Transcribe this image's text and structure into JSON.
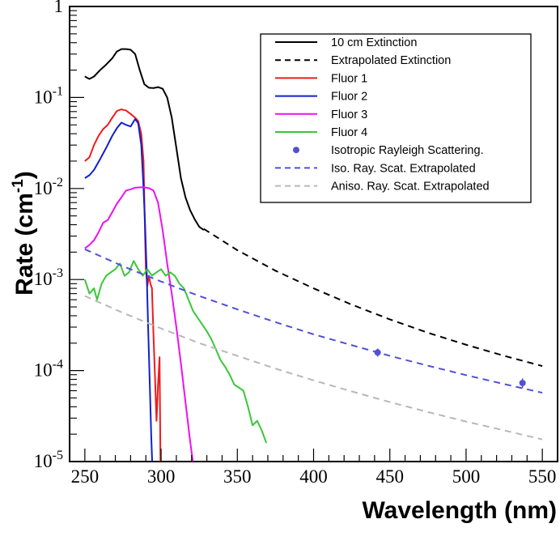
{
  "chart_data": {
    "type": "line",
    "title": "",
    "xlabel": "Wavelength (nm)",
    "ylabel_main": "Rate (cm",
    "ylabel_sup": "-1",
    "ylabel_close": ")",
    "xlim": [
      240,
      560
    ],
    "ylim": [
      1e-05,
      1
    ],
    "yscale": "log",
    "grid": false,
    "legend_position": "top-right",
    "x_ticks": [
      {
        "value": 250,
        "label": "250"
      },
      {
        "value": 300,
        "label": "300"
      },
      {
        "value": 350,
        "label": "350"
      },
      {
        "value": 400,
        "label": "400"
      },
      {
        "value": 450,
        "label": "450"
      },
      {
        "value": 500,
        "label": "500"
      },
      {
        "value": 550,
        "label": "550"
      }
    ],
    "y_ticks": [
      {
        "value": 1,
        "base": "1",
        "exp": ""
      },
      {
        "value": 0.1,
        "base": "10",
        "exp": "-1"
      },
      {
        "value": 0.01,
        "base": "10",
        "exp": "-2"
      },
      {
        "value": 0.001,
        "base": "10",
        "exp": "-3"
      },
      {
        "value": 0.0001,
        "base": "10",
        "exp": "-4"
      },
      {
        "value": 1e-05,
        "base": "10",
        "exp": "-5"
      }
    ],
    "series": [
      {
        "name": "10 cm Extinction",
        "style": "solid",
        "color": "#000000",
        "points": [
          [
            250,
            0.17
          ],
          [
            253,
            0.16
          ],
          [
            256,
            0.17
          ],
          [
            260,
            0.2
          ],
          [
            264,
            0.23
          ],
          [
            268,
            0.27
          ],
          [
            271,
            0.32
          ],
          [
            274,
            0.34
          ],
          [
            277,
            0.34
          ],
          [
            280,
            0.335
          ],
          [
            283,
            0.3
          ],
          [
            286,
            0.2
          ],
          [
            289,
            0.14
          ],
          [
            292,
            0.128
          ],
          [
            295,
            0.127
          ],
          [
            298,
            0.13
          ],
          [
            301,
            0.125
          ],
          [
            304,
            0.1
          ],
          [
            307,
            0.06
          ],
          [
            310,
            0.028
          ],
          [
            313,
            0.013
          ],
          [
            316,
            0.008
          ],
          [
            319,
            0.0058
          ],
          [
            322,
            0.0046
          ],
          [
            325,
            0.0038
          ],
          [
            328,
            0.0035
          ]
        ]
      },
      {
        "name": "Extrapolated Extinction",
        "style": "dashed",
        "color": "#000000",
        "points": [
          [
            328,
            0.0036
          ],
          [
            350,
            0.0021
          ],
          [
            375,
            0.00125
          ],
          [
            400,
            0.0008
          ],
          [
            425,
            0.00053
          ],
          [
            450,
            0.000365
          ],
          [
            475,
            0.00026
          ],
          [
            500,
            0.000192
          ],
          [
            525,
            0.000145
          ],
          [
            550,
            0.000112
          ]
        ]
      },
      {
        "name": "Fluor 1",
        "style": "solid",
        "color": "#ee1c1c",
        "points": [
          [
            250,
            0.02
          ],
          [
            253,
            0.022
          ],
          [
            256,
            0.03
          ],
          [
            259,
            0.038
          ],
          [
            262,
            0.045
          ],
          [
            265,
            0.05
          ],
          [
            268,
            0.06
          ],
          [
            271,
            0.071
          ],
          [
            274,
            0.074
          ],
          [
            277,
            0.072
          ],
          [
            280,
            0.066
          ],
          [
            283,
            0.06
          ],
          [
            285,
            0.055
          ],
          [
            287,
            0.04
          ],
          [
            288.5,
            0.02
          ],
          [
            289,
            0.008
          ],
          [
            289.5,
            0.003
          ],
          [
            290,
            0.0013
          ],
          [
            291,
            0.00085
          ],
          [
            292,
            0.0011
          ],
          [
            293,
            0.0009
          ],
          [
            294,
            0.0008
          ],
          [
            295,
            0.00025
          ],
          [
            296,
            8.5e-05
          ],
          [
            297,
            2.8e-05
          ],
          [
            298,
            7e-05
          ],
          [
            299,
            0.00014
          ],
          [
            299.6,
            9.5e-06
          ]
        ]
      },
      {
        "name": "Fluor 2",
        "style": "solid",
        "color": "#1020d0",
        "points": [
          [
            250,
            0.013
          ],
          [
            253,
            0.014
          ],
          [
            256,
            0.016
          ],
          [
            260,
            0.021
          ],
          [
            264,
            0.028
          ],
          [
            268,
            0.038
          ],
          [
            271,
            0.046
          ],
          [
            274,
            0.053
          ],
          [
            277,
            0.05
          ],
          [
            280,
            0.048
          ],
          [
            283,
            0.058
          ],
          [
            285,
            0.052
          ],
          [
            287,
            0.03
          ],
          [
            288.5,
            0.01
          ],
          [
            289.5,
            0.004
          ],
          [
            290.5,
            0.0013
          ],
          [
            291.5,
            0.0003
          ],
          [
            292.5,
            8e-05
          ],
          [
            293.5,
            2e-05
          ],
          [
            294.2,
            9.5e-06
          ]
        ]
      },
      {
        "name": "Fluor 3",
        "style": "solid",
        "color": "#ee10ee",
        "points": [
          [
            250,
            0.0022
          ],
          [
            253,
            0.0024
          ],
          [
            256,
            0.0027
          ],
          [
            259,
            0.0033
          ],
          [
            262,
            0.0042
          ],
          [
            265,
            0.0045
          ],
          [
            268,
            0.0055
          ],
          [
            271,
            0.0068
          ],
          [
            274,
            0.008
          ],
          [
            277,
            0.0095
          ],
          [
            280,
            0.0098
          ],
          [
            283,
            0.0102
          ],
          [
            286,
            0.0103
          ],
          [
            289,
            0.0103
          ],
          [
            292,
            0.0101
          ],
          [
            295,
            0.0095
          ],
          [
            298,
            0.007
          ],
          [
            301,
            0.0035
          ],
          [
            304,
            0.0015
          ],
          [
            307,
            0.0007
          ],
          [
            310,
            0.0003
          ],
          [
            313,
            0.00012
          ],
          [
            316,
            4.5e-05
          ],
          [
            319,
            1.7e-05
          ],
          [
            321,
            9.5e-06
          ]
        ]
      },
      {
        "name": "Fluor 4",
        "style": "solid",
        "color": "#38c838",
        "points": [
          [
            250,
            0.001
          ],
          [
            253,
            0.0007
          ],
          [
            256,
            0.0008
          ],
          [
            258,
            0.0006
          ],
          [
            261,
            0.0009
          ],
          [
            264,
            0.0011
          ],
          [
            267,
            0.0012
          ],
          [
            270,
            0.0013
          ],
          [
            273,
            0.0015
          ],
          [
            276,
            0.0011
          ],
          [
            279,
            0.0012
          ],
          [
            282,
            0.0016
          ],
          [
            285,
            0.0013
          ],
          [
            288,
            0.0011
          ],
          [
            291,
            0.0013
          ],
          [
            294,
            0.0011
          ],
          [
            297,
            0.0012
          ],
          [
            300,
            0.0013
          ],
          [
            303,
            0.0011
          ],
          [
            306,
            0.0012
          ],
          [
            309,
            0.0011
          ],
          [
            312,
            0.0009
          ],
          [
            315,
            0.0008
          ],
          [
            318,
            0.0006
          ],
          [
            321,
            0.00045
          ],
          [
            324,
            0.00038
          ],
          [
            327,
            0.00032
          ],
          [
            330,
            0.00027
          ],
          [
            333,
            0.00022
          ],
          [
            336,
            0.00017
          ],
          [
            339,
            0.00013
          ],
          [
            342,
            0.00011
          ],
          [
            345,
            9e-05
          ],
          [
            348,
            7e-05
          ],
          [
            351,
            6.5e-05
          ],
          [
            354,
            6e-05
          ],
          [
            357,
            4e-05
          ],
          [
            360,
            2.5e-05
          ],
          [
            363,
            2.8e-05
          ],
          [
            366,
            2.2e-05
          ],
          [
            369,
            1.6e-05
          ]
        ]
      },
      {
        "name": "Isotropic Rayleigh Scattering.",
        "style": "markers",
        "color": "#5050d8",
        "points": [
          [
            442,
            0.000158
          ],
          [
            537,
            7.3e-05
          ]
        ],
        "errors": [
          [
            1.6e-05,
            1.6e-05
          ],
          [
            9e-06,
            9e-06
          ]
        ]
      },
      {
        "name": "Iso. Ray. Scat. Extrapolated",
        "style": "dashed",
        "color": "#5050d8",
        "points": [
          [
            250,
            0.00215
          ],
          [
            275,
            0.0014
          ],
          [
            300,
            0.00095
          ],
          [
            325,
            0.00066
          ],
          [
            350,
            0.00047
          ],
          [
            375,
            0.00034
          ],
          [
            400,
            0.00025
          ],
          [
            425,
            0.00019
          ],
          [
            450,
            0.000145
          ],
          [
            475,
            0.000113
          ],
          [
            500,
            8.9e-05
          ],
          [
            525,
            7.1e-05
          ],
          [
            550,
            5.7e-05
          ]
        ]
      },
      {
        "name": "Aniso. Ray. Scat. Extrapolated",
        "style": "dashed",
        "color": "#b8b8b8",
        "points": [
          [
            250,
            0.00066
          ],
          [
            275,
            0.00043
          ],
          [
            300,
            0.00029
          ],
          [
            325,
            0.0002
          ],
          [
            350,
            0.000145
          ],
          [
            375,
            0.000105
          ],
          [
            400,
            7.8e-05
          ],
          [
            425,
            5.9e-05
          ],
          [
            450,
            4.5e-05
          ],
          [
            475,
            3.5e-05
          ],
          [
            500,
            2.75e-05
          ],
          [
            525,
            2.2e-05
          ],
          [
            550,
            1.75e-05
          ]
        ]
      }
    ]
  }
}
